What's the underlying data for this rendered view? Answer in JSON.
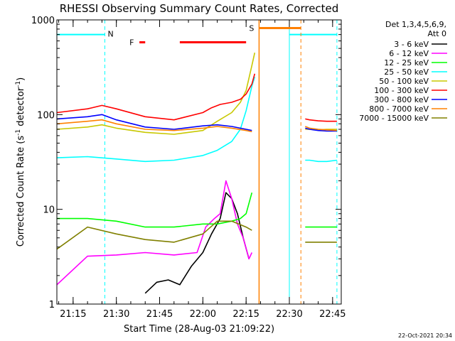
{
  "chart_data": {
    "type": "line",
    "title": "RHESSI Observing Summary Count Rates, Corrected",
    "xlabel": "Start Time (28-Aug-03 21:09:22)",
    "ylabel": "Corrected Count Rate (s",
    "ylabel_sup1": "-1",
    "ylabel_mid": " detector",
    "ylabel_sup2": "-1",
    "ylabel_end": ")",
    "timestamp": "22-Oct-2021 20:34",
    "y_scale": "log",
    "ylim": [
      1,
      1000
    ],
    "xlim": [
      "21:09:22",
      "22:48:00"
    ],
    "x_ticks": [
      "21:15",
      "21:30",
      "21:45",
      "22:00",
      "22:15",
      "22:30",
      "22:45"
    ],
    "y_ticks": [
      "1",
      "10",
      "100",
      "1000"
    ],
    "legend": {
      "placement": "outside-right",
      "header1": "Det 1,3,4,5,6,9,",
      "header2": "Att 0"
    },
    "annotations": {
      "night_label": "N",
      "flare_label": "F",
      "saa_label": "S",
      "night_color": "#00ffff",
      "flare_color": "#ff0000",
      "saa_color": "#ff8000",
      "night_intervals": [
        [
          "21:09:22",
          "21:26:00"
        ],
        [
          "22:30:00",
          "22:46:30"
        ]
      ],
      "flare_intervals": [
        [
          "21:38:00",
          "21:40:00"
        ],
        [
          "21:52:00",
          "22:15:00"
        ]
      ],
      "saa_intervals": [
        [
          "22:19:30",
          "22:34:00"
        ]
      ],
      "night_level": 700,
      "flare_level": 580,
      "saa_level": 820
    },
    "series": [
      {
        "name": "3 - 6 keV",
        "color": "#000000",
        "x": [
          "21:40",
          "21:44",
          "21:48",
          "21:52",
          "21:56",
          "22:00",
          "22:03",
          "22:06",
          "22:08",
          "22:10",
          "22:12",
          "22:14",
          "22:16"
        ],
        "values": [
          1.3,
          1.7,
          1.8,
          1.6,
          2.5,
          3.5,
          5.5,
          8,
          15,
          13,
          9,
          5,
          3
        ]
      },
      {
        "name": "6 - 12 keV",
        "color": "#ff00ff",
        "x": [
          "21:09:22",
          "21:20",
          "21:30",
          "21:40",
          "21:50",
          "21:58",
          "22:01",
          "22:04",
          "22:06",
          "22:08",
          "22:10",
          "22:12",
          "22:14",
          "22:16",
          "22:17"
        ],
        "values": [
          1.6,
          3.2,
          3.3,
          3.5,
          3.3,
          3.5,
          6.5,
          8,
          9,
          20,
          13,
          7,
          5,
          3,
          3.5
        ]
      },
      {
        "name": "12 - 25 keV",
        "color": "#00ff00",
        "x": [
          "21:09:22",
          "21:20",
          "21:30",
          "21:40",
          "21:50",
          "22:00",
          "22:05",
          "22:10",
          "22:13",
          "22:15",
          "22:17"
        ],
        "values": [
          8,
          8,
          7.5,
          6.5,
          6.5,
          7,
          7,
          7.5,
          8,
          9,
          15
        ]
      },
      {
        "name": "25 - 50 keV",
        "color": "#00ffff",
        "x": [
          "21:09:22",
          "21:20",
          "21:30",
          "21:40",
          "21:50",
          "22:00",
          "22:05",
          "22:10",
          "22:13",
          "22:15",
          "22:17",
          "22:18"
        ],
        "values": [
          35,
          36,
          34,
          32,
          33,
          37,
          42,
          52,
          70,
          110,
          200,
          250
        ]
      },
      {
        "name": "50 - 100 keV",
        "color": "#c8c800",
        "x": [
          "21:09:22",
          "21:20",
          "21:25",
          "21:30",
          "21:40",
          "21:50",
          "22:00",
          "22:05",
          "22:10",
          "22:13",
          "22:15",
          "22:17",
          "22:18"
        ],
        "values": [
          70,
          74,
          78,
          72,
          65,
          62,
          68,
          85,
          105,
          135,
          180,
          330,
          450
        ]
      },
      {
        "name": "100 - 300 keV",
        "color": "#ff0000",
        "x": [
          "21:09:22",
          "21:20",
          "21:25",
          "21:30",
          "21:40",
          "21:50",
          "22:00",
          "22:03",
          "22:06",
          "22:10",
          "22:13",
          "22:15",
          "22:17",
          "22:18"
        ],
        "values": [
          105,
          115,
          125,
          115,
          95,
          88,
          105,
          118,
          128,
          135,
          145,
          165,
          210,
          270
        ]
      },
      {
        "name": "300 - 800 keV",
        "color": "#0000ff",
        "x": [
          "21:09:22",
          "21:20",
          "21:25",
          "21:30",
          "21:40",
          "21:50",
          "22:00",
          "22:05",
          "22:10",
          "22:15",
          "22:17"
        ],
        "values": [
          90,
          95,
          100,
          88,
          74,
          70,
          76,
          78,
          75,
          70,
          68
        ]
      },
      {
        "name": "800 - 7000 keV",
        "color": "#ff8000",
        "x": [
          "21:09:22",
          "21:20",
          "21:25",
          "21:30",
          "21:40",
          "21:50",
          "22:00",
          "22:05",
          "22:10",
          "22:15",
          "22:17"
        ],
        "values": [
          80,
          85,
          88,
          80,
          70,
          68,
          72,
          75,
          72,
          68,
          66
        ]
      },
      {
        "name": "7000 - 15000 keV",
        "color": "#808000",
        "x": [
          "21:09:22",
          "21:20",
          "21:30",
          "21:40",
          "21:50",
          "22:00",
          "22:05",
          "22:10",
          "22:15",
          "22:17"
        ],
        "values": [
          3.8,
          6.5,
          5.5,
          4.8,
          4.5,
          5.5,
          7.5,
          7.5,
          6.5,
          6
        ]
      }
    ],
    "post_gap_segment": {
      "x": [
        "22:35:30",
        "22:37",
        "22:40",
        "22:43",
        "22:46:30"
      ],
      "values_by_series": {
        "3 - 6 keV": null,
        "6 - 12 keV": null,
        "12 - 25 keV": [
          6.5,
          6.5,
          6.5,
          6.5,
          6.5
        ],
        "25 - 50 keV": [
          33,
          33,
          32,
          32,
          33
        ],
        "50 - 100 keV": [
          70,
          70,
          69,
          70,
          70
        ],
        "100 - 300 keV": [
          90,
          88,
          86,
          85,
          85
        ],
        "300 - 800 keV": [
          72,
          70,
          68,
          67,
          67
        ],
        "800 - 7000 keV": [
          75,
          72,
          70,
          69,
          68
        ],
        "7000 - 15000 keV": [
          4.5,
          4.5,
          4.5,
          4.5,
          4.5
        ]
      }
    }
  }
}
